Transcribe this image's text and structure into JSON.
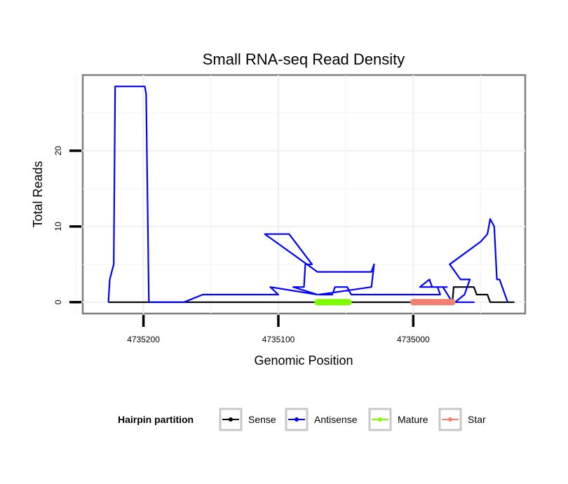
{
  "chart_data": {
    "type": "line",
    "title": "Small RNA-seq Read Density",
    "xlabel": "Genomic Position",
    "ylabel": "Total Reads",
    "x_reversed": true,
    "xlim": [
      4735245,
      4734917
    ],
    "ylim": [
      -1.5,
      30
    ],
    "x_ticks": [
      4735200,
      4735100,
      4735000
    ],
    "x_tick_labels": [
      "4735200",
      "4735100",
      "4735000"
    ],
    "y_ticks": [
      0,
      10,
      20
    ],
    "y_tick_labels": [
      "0",
      "10",
      "20"
    ],
    "grid": true,
    "legend": {
      "title": "Hairpin partition",
      "position": "bottom",
      "items": [
        {
          "label": "Sense",
          "color": "#000000"
        },
        {
          "label": "Antisense",
          "color": "#0000ff"
        },
        {
          "label": "Mature",
          "color": "#7cfc00"
        },
        {
          "label": "Star",
          "color": "#f08070"
        }
      ]
    },
    "series": [
      {
        "name": "Sense",
        "color": "#000000",
        "x": [
          4735226,
          4735000,
          4734971,
          4734970,
          4734955,
          4734953,
          4734945,
          4734943,
          4734925
        ],
        "y": [
          0,
          0,
          0,
          2,
          2,
          1,
          1,
          0,
          0
        ]
      },
      {
        "name": "Antisense",
        "color": "#0000ff",
        "x": [
          4735226,
          4735225,
          4735222,
          4735221,
          4735199,
          4735198,
          4735196,
          4735172,
          4735171,
          4735170,
          4735156,
          4735133,
          4735100,
          4735106,
          4735071,
          4735089,
          4735081,
          4735080,
          4735075,
          4735092,
          4735110,
          4735071,
          4735031,
          4735029,
          4735031,
          4735070,
          4735060,
          4735058,
          4735049,
          4735046,
          4734980,
          4734982,
          4734986,
          4734988,
          4734995,
          4734975,
          4734978,
          4734971,
          4734955,
          4734970,
          4734969,
          4734962,
          4734958,
          4734965,
          4734973,
          4734950,
          4734945,
          4734944,
          4734943,
          4734940,
          4734938,
          4734936,
          4734934,
          4734932,
          4734930
        ],
        "y": [
          0,
          3,
          5,
          28.5,
          28.5,
          27.5,
          0,
          0,
          0,
          0,
          1,
          1,
          1,
          2,
          1,
          2,
          2,
          5,
          5,
          9,
          9,
          4,
          4,
          5,
          2,
          1,
          1,
          2,
          2,
          1,
          1,
          2,
          2,
          3,
          2,
          2,
          2,
          0,
          0,
          0,
          0,
          1,
          3,
          3,
          5,
          8,
          9,
          10,
          11,
          10,
          3,
          3,
          2,
          1,
          0
        ]
      }
    ],
    "segments": [
      {
        "name": "Mature",
        "color": "#7cfc00",
        "x_start": 4735071,
        "x_end": 4735048,
        "y": 0
      },
      {
        "name": "Star",
        "color": "#f08070",
        "x_start": 4735000,
        "x_end": 4734971,
        "y": 0
      }
    ]
  }
}
